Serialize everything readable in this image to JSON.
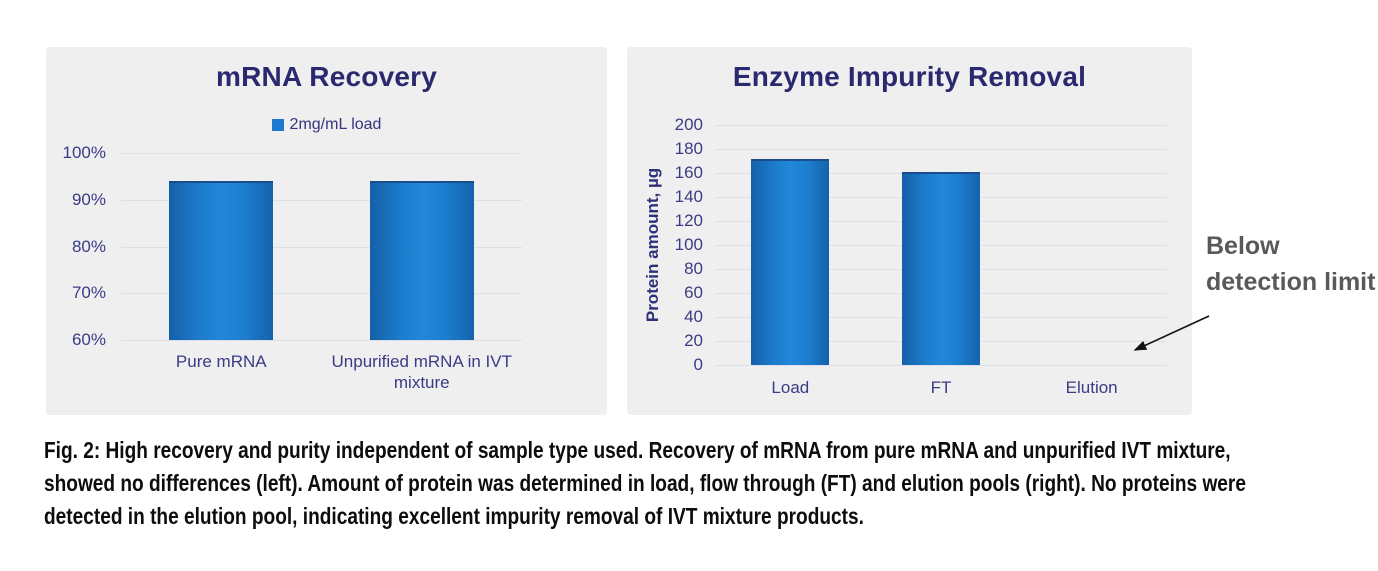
{
  "chart_data": [
    {
      "type": "bar",
      "title": "mRNA Recovery",
      "legend": {
        "label": "2mg/mL load",
        "color": "#1d79ce",
        "position": "top"
      },
      "categories": [
        "Pure mRNA",
        "Unpurified mRNA in IVT mixture"
      ],
      "values": [
        94,
        94
      ],
      "xlabel": "",
      "ylabel": "",
      "ylim": [
        60,
        100
      ],
      "yticks": [
        100,
        90,
        80,
        70,
        60
      ],
      "ytick_labels": [
        "100%",
        "90%",
        "80%",
        "70%",
        "60%"
      ],
      "grid": true
    },
    {
      "type": "bar",
      "title": "Enzyme Impurity Removal",
      "categories": [
        "Load",
        "FT",
        "Elution"
      ],
      "values": [
        172,
        161,
        null
      ],
      "value_notes": [
        "",
        "",
        "below detection limit"
      ],
      "xlabel": "",
      "ylabel": "Protein amount, µg",
      "ylim": [
        0,
        200
      ],
      "yticks": [
        200,
        180,
        160,
        140,
        120,
        100,
        80,
        60,
        40,
        20,
        0
      ],
      "ytick_labels": [
        "200",
        "180",
        "160",
        "140",
        "120",
        "100",
        "80",
        "60",
        "40",
        "20",
        "0"
      ],
      "grid": true
    }
  ],
  "annotation": {
    "text": "Below detection limit",
    "color": "#595959",
    "target": "Elution"
  },
  "caption": {
    "lines": [
      "Fig. 2: High recovery and purity independent of sample type used. Recovery of mRNA from pure mRNA and unpurified IVT mixture,",
      "showed no differences (left). Amount of protein was determined in load, flow through (FT) and elution pools (right). No proteins were",
      "detected in the elution pool, indicating excellent impurity removal of IVT mixture products."
    ]
  },
  "colors": {
    "title_navy": "#2a2970",
    "axis_navy": "#3b3b86",
    "bar_fill": "#1d7ed2",
    "bar_edge": "#1d4c8c",
    "panel_bg": "#efefef",
    "gridline": "#dfdfeb",
    "annotation_gray": "#595959",
    "caption_black": "#0d0d0d"
  }
}
